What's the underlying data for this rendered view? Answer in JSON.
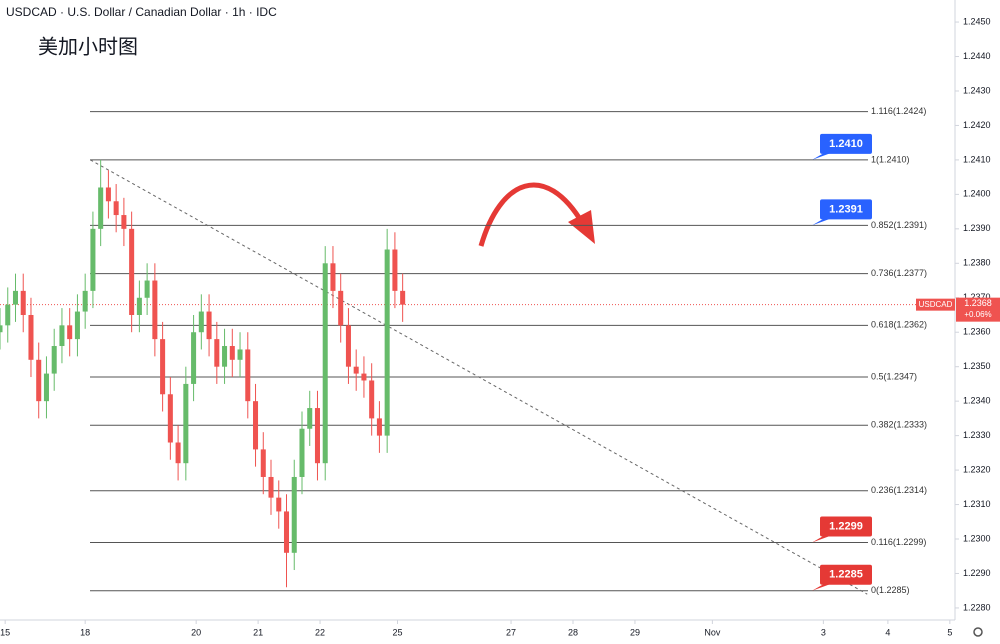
{
  "chart_data": {
    "type": "candlestick",
    "title": "USDCAD · U.S. Dollar / Canadian Dollar · 1h · IDC",
    "subtitle": "美加小时图",
    "up_color": "#66bb6a",
    "down_color": "#ef5350",
    "x": [
      -33,
      -30,
      -27,
      -24,
      -21,
      -18,
      -15,
      -12,
      -9,
      -6,
      -3,
      0,
      3,
      6,
      9,
      12,
      15,
      18,
      21,
      24,
      27,
      30,
      33,
      36,
      39,
      42,
      45,
      48,
      51,
      54,
      57,
      60,
      63,
      66,
      69,
      72,
      75,
      78,
      81,
      84,
      87,
      90,
      93,
      96,
      99,
      102,
      105,
      108,
      111,
      114,
      117,
      120,
      123
    ],
    "open": [
      1.236,
      1.2362,
      1.2368,
      1.2372,
      1.2365,
      1.2352,
      1.234,
      1.2348,
      1.2356,
      1.2362,
      1.2358,
      1.2366,
      1.2372,
      1.239,
      1.2402,
      1.2398,
      1.2394,
      1.239,
      1.2365,
      1.237,
      1.2375,
      1.2358,
      1.2342,
      1.2328,
      1.2322,
      1.2345,
      1.236,
      1.2366,
      1.2358,
      1.235,
      1.2356,
      1.2352,
      1.2355,
      1.234,
      1.2326,
      1.2318,
      1.2312,
      1.2308,
      1.2296,
      1.2318,
      1.2332,
      1.2338,
      1.2322,
      1.238,
      1.2372,
      1.2362,
      1.235,
      1.2348,
      1.2346,
      1.2335,
      1.233,
      1.2384,
      1.2372
    ],
    "high": [
      1.2367,
      1.2373,
      1.2377,
      1.2377,
      1.237,
      1.2357,
      1.2353,
      1.2361,
      1.2367,
      1.2367,
      1.2371,
      1.2377,
      1.2395,
      1.241,
      1.2407,
      1.2403,
      1.2399,
      1.2395,
      1.2375,
      1.238,
      1.238,
      1.2363,
      1.2347,
      1.2333,
      1.235,
      1.2365,
      1.2371,
      1.2371,
      1.2363,
      1.2361,
      1.2361,
      1.236,
      1.236,
      1.2345,
      1.2331,
      1.2323,
      1.2317,
      1.2313,
      1.2323,
      1.2337,
      1.2343,
      1.2343,
      1.2385,
      1.2385,
      1.2377,
      1.2367,
      1.2355,
      1.2353,
      1.2351,
      1.234,
      1.239,
      1.2389,
      1.2377
    ],
    "low": [
      1.2355,
      1.2357,
      1.2363,
      1.236,
      1.2347,
      1.2335,
      1.2335,
      1.2343,
      1.2351,
      1.2353,
      1.2353,
      1.2361,
      1.2367,
      1.2385,
      1.2393,
      1.2389,
      1.2385,
      1.236,
      1.236,
      1.2365,
      1.2353,
      1.2337,
      1.2323,
      1.2317,
      1.2317,
      1.234,
      1.2355,
      1.2353,
      1.2345,
      1.2345,
      1.2347,
      1.2347,
      1.2335,
      1.2321,
      1.2313,
      1.2307,
      1.2303,
      1.2286,
      1.2291,
      1.2313,
      1.2327,
      1.2317,
      1.2317,
      1.2367,
      1.2357,
      1.2345,
      1.2343,
      1.2341,
      1.233,
      1.2325,
      1.2325,
      1.2367,
      1.2363
    ],
    "close": [
      1.2362,
      1.2368,
      1.2372,
      1.2365,
      1.2352,
      1.234,
      1.2348,
      1.2356,
      1.2362,
      1.2358,
      1.2366,
      1.2372,
      1.239,
      1.2402,
      1.2398,
      1.2394,
      1.239,
      1.2365,
      1.237,
      1.2375,
      1.2358,
      1.2342,
      1.2328,
      1.2322,
      1.2345,
      1.236,
      1.2366,
      1.2358,
      1.235,
      1.2356,
      1.2352,
      1.2355,
      1.234,
      1.2326,
      1.2318,
      1.2312,
      1.2308,
      1.2296,
      1.2318,
      1.2332,
      1.2338,
      1.2322,
      1.238,
      1.2372,
      1.2362,
      1.235,
      1.2348,
      1.2346,
      1.2335,
      1.233,
      1.2384,
      1.2372,
      1.2368
    ],
    "xlim": [
      -33,
      337
    ],
    "xticks": [
      {
        "value": -31,
        "label": "15"
      },
      {
        "value": 0,
        "label": "18"
      },
      {
        "value": 43,
        "label": "20"
      },
      {
        "value": 67,
        "label": "21"
      },
      {
        "value": 91,
        "label": "22"
      },
      {
        "value": 121,
        "label": "25"
      },
      {
        "value": 165,
        "label": "27"
      },
      {
        "value": 189,
        "label": "28"
      },
      {
        "value": 213,
        "label": "29"
      },
      {
        "value": 243,
        "label": "Nov"
      },
      {
        "value": 286,
        "label": "3"
      },
      {
        "value": 311,
        "label": "4"
      },
      {
        "value": 335,
        "label": "5"
      }
    ],
    "ylim": [
      1.22765,
      1.24564
    ],
    "yticks": [
      {
        "value": 1.245,
        "label": "1.2450"
      },
      {
        "value": 1.244,
        "label": "1.2440"
      },
      {
        "value": 1.243,
        "label": "1.2430"
      },
      {
        "value": 1.242,
        "label": "1.2420"
      },
      {
        "value": 1.241,
        "label": "1.2410"
      },
      {
        "value": 1.24,
        "label": "1.2400"
      },
      {
        "value": 1.239,
        "label": "1.2390"
      },
      {
        "value": 1.238,
        "label": "1.2380"
      },
      {
        "value": 1.237,
        "label": "1.2370"
      },
      {
        "value": 1.236,
        "label": "1.2360"
      },
      {
        "value": 1.235,
        "label": "1.2350"
      },
      {
        "value": 1.234,
        "label": "1.2340"
      },
      {
        "value": 1.233,
        "label": "1.2330"
      },
      {
        "value": 1.232,
        "label": "1.2320"
      },
      {
        "value": 1.231,
        "label": "1.2310"
      },
      {
        "value": 1.23,
        "label": "1.2300"
      },
      {
        "value": 1.229,
        "label": "1.2290"
      },
      {
        "value": 1.228,
        "label": "1.2280"
      }
    ],
    "fib_levels": [
      {
        "value": 1.2424,
        "label": "1.116(1.2424)"
      },
      {
        "value": 1.241,
        "label": "1(1.2410)"
      },
      {
        "value": 1.2391,
        "label": "0.852(1.2391)"
      },
      {
        "value": 1.2377,
        "label": "0.736(1.2377)"
      },
      {
        "value": 1.2362,
        "label": "0.618(1.2362)"
      },
      {
        "value": 1.2347,
        "label": "0.5(1.2347)"
      },
      {
        "value": 1.2333,
        "label": "0.382(1.2333)"
      },
      {
        "value": 1.2314,
        "label": "0.236(1.2314)"
      },
      {
        "value": 1.2299,
        "label": "0.116(1.2299)"
      },
      {
        "value": 1.2285,
        "label": "0(1.2285)"
      }
    ],
    "callouts": [
      {
        "value": 1.241,
        "label": "1.2410",
        "color": "#2962ff"
      },
      {
        "value": 1.2391,
        "label": "1.2391",
        "color": "#2962ff"
      },
      {
        "value": 1.2299,
        "label": "1.2299",
        "color": "#e53935"
      },
      {
        "value": 1.2285,
        "label": "1.2285",
        "color": "#e53935"
      }
    ],
    "trendline": {
      "x": [
        2,
        303
      ],
      "y": [
        1.241,
        1.2284
      ]
    },
    "last_price": {
      "symbol": "USDCAD",
      "value": 1.2368,
      "label": "1.2368",
      "change": "+0.06%",
      "color": "#ef5350"
    }
  }
}
